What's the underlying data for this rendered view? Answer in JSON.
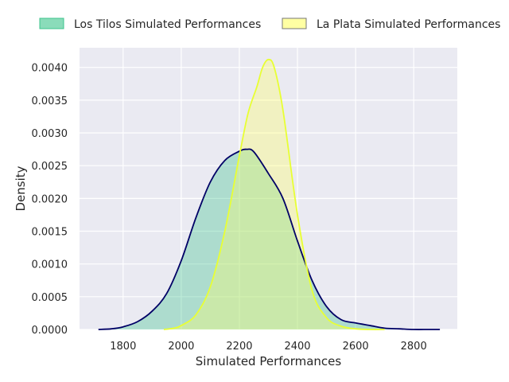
{
  "chart_data": {
    "type": "area",
    "xlabel": "Simulated Performances",
    "ylabel": "Density",
    "xlim": [
      1650,
      2950
    ],
    "ylim": [
      0,
      0.0043
    ],
    "xticks": [
      1800,
      2000,
      2200,
      2400,
      2600,
      2800
    ],
    "yticks": [
      0,
      0.0005,
      0.001,
      0.0015,
      0.002,
      0.0025,
      0.003,
      0.0035,
      0.004
    ],
    "grid": true,
    "legend_position": "top",
    "series": [
      {
        "name": "Los Tilos Simulated Performances",
        "fill_color": "#3cc48c",
        "line_color": "#000066",
        "x": [
          1715,
          1760,
          1800,
          1850,
          1900,
          1950,
          2000,
          2050,
          2100,
          2150,
          2200,
          2225,
          2250,
          2300,
          2350,
          2400,
          2450,
          2500,
          2550,
          2600,
          2650,
          2700,
          2750,
          2800,
          2850,
          2890
        ],
        "y": [
          0.0,
          1e-05,
          4e-05,
          0.00012,
          0.00028,
          0.00055,
          0.00105,
          0.0017,
          0.00225,
          0.00258,
          0.00272,
          0.00275,
          0.00271,
          0.00238,
          0.002,
          0.00135,
          0.00075,
          0.00035,
          0.00015,
          0.0001,
          6e-05,
          2e-05,
          1e-05,
          0.0,
          0.0,
          0.0
        ]
      },
      {
        "name": "La Plata Simulated Performances",
        "fill_color": "#ffff66",
        "line_color": "#e8ff33",
        "x": [
          1940,
          1975,
          2000,
          2050,
          2100,
          2150,
          2200,
          2230,
          2260,
          2280,
          2300,
          2320,
          2350,
          2400,
          2450,
          2500,
          2550,
          2600,
          2650,
          2700
        ],
        "y": [
          0.0,
          2e-05,
          6e-05,
          0.00022,
          0.00065,
          0.0015,
          0.00265,
          0.0033,
          0.0037,
          0.004,
          0.00412,
          0.004,
          0.00335,
          0.00175,
          0.0006,
          0.00018,
          5e-05,
          1e-05,
          0.0,
          0.0
        ]
      }
    ]
  }
}
